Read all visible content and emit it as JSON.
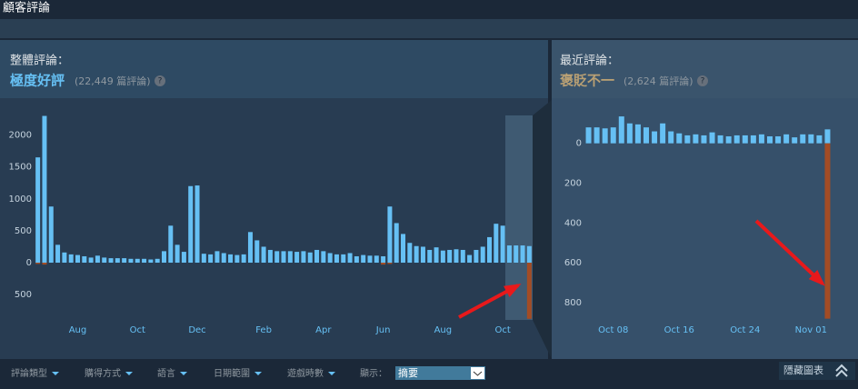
{
  "header": {
    "title": "顧客評論"
  },
  "overall": {
    "label": "整體評論：",
    "rating": "極度好評",
    "count": "(22,449 篇評論)",
    "help": "?"
  },
  "recent": {
    "label": "最近評論：",
    "rating": "褒貶不一",
    "count": "(2,624 篇評論)",
    "help": "?"
  },
  "filters": {
    "items": [
      "評論類型",
      "購得方式",
      "語言",
      "日期範圍",
      "遊戲時數"
    ],
    "display_label": "顯示：",
    "display_value": "摘要",
    "hide": "隱藏圖表"
  },
  "chart_data": [
    {
      "type": "bar",
      "categories": [
        null,
        null,
        null,
        null,
        null,
        null,
        "Aug",
        null,
        null,
        null,
        null,
        null,
        null,
        null,
        null,
        "Oct",
        null,
        null,
        null,
        null,
        null,
        null,
        null,
        null,
        "Dec",
        null,
        null,
        null,
        null,
        null,
        null,
        null,
        null,
        null,
        "Feb",
        null,
        null,
        null,
        null,
        null,
        null,
        null,
        null,
        "Apr",
        null,
        null,
        null,
        null,
        null,
        null,
        null,
        null,
        "Jun",
        null,
        null,
        null,
        null,
        null,
        null,
        null,
        null,
        "Aug",
        null,
        null,
        null,
        null,
        null,
        null,
        null,
        null,
        "Oct",
        null,
        null,
        null,
        null
      ],
      "series": [
        {
          "color": "#66c0f4",
          "values": [
            1650,
            2300,
            880,
            280,
            160,
            130,
            120,
            100,
            80,
            110,
            80,
            70,
            70,
            70,
            60,
            60,
            60,
            50,
            60,
            180,
            580,
            280,
            170,
            1200,
            1210,
            140,
            130,
            180,
            150,
            130,
            120,
            130,
            480,
            350,
            250,
            200,
            180,
            180,
            180,
            170,
            180,
            160,
            200,
            180,
            150,
            130,
            130,
            150,
            100,
            120,
            110,
            110,
            100,
            880,
            620,
            450,
            310,
            260,
            250,
            200,
            240,
            190,
            200,
            210,
            200,
            120,
            200,
            250,
            400,
            610,
            580,
            270,
            270,
            270,
            260
          ]
        },
        {
          "color": "#a34c25",
          "values": [
            -20,
            -30,
            0,
            0,
            0,
            0,
            0,
            0,
            0,
            0,
            0,
            0,
            0,
            0,
            0,
            0,
            0,
            0,
            0,
            0,
            0,
            0,
            0,
            0,
            0,
            0,
            0,
            0,
            0,
            0,
            0,
            0,
            0,
            0,
            0,
            0,
            0,
            0,
            0,
            0,
            0,
            0,
            0,
            0,
            0,
            0,
            0,
            0,
            0,
            0,
            0,
            0,
            -30,
            -20,
            0,
            0,
            0,
            0,
            0,
            0,
            0,
            0,
            0,
            0,
            0,
            0,
            0,
            0,
            0,
            0,
            0,
            0,
            0,
            0,
            -880
          ]
        }
      ],
      "ylim": [
        -940,
        2450
      ],
      "yticks": [
        2000,
        1500,
        1000,
        500,
        0,
        {
          "value": -500,
          "label": "500"
        }
      ]
    },
    {
      "type": "bar",
      "categories": [
        null,
        null,
        null,
        "Oct 08",
        null,
        null,
        null,
        null,
        null,
        null,
        null,
        "Oct 16",
        null,
        null,
        null,
        null,
        null,
        null,
        null,
        "Oct 24",
        null,
        null,
        null,
        null,
        null,
        null,
        null,
        "Nov 01",
        null,
        null
      ],
      "series": [
        {
          "color": "#66c0f4",
          "values": [
            80,
            80,
            75,
            80,
            135,
            100,
            95,
            80,
            60,
            100,
            60,
            50,
            40,
            45,
            40,
            55,
            40,
            35,
            40,
            40,
            40,
            45,
            35,
            35,
            45,
            30,
            45,
            45,
            40,
            70
          ]
        },
        {
          "color": "#a34c25",
          "values": [
            0,
            0,
            0,
            0,
            0,
            0,
            0,
            0,
            0,
            0,
            0,
            0,
            0,
            0,
            0,
            0,
            0,
            0,
            0,
            0,
            0,
            0,
            0,
            0,
            0,
            0,
            0,
            0,
            0,
            -880
          ]
        }
      ],
      "ylim": [
        -900,
        140
      ],
      "yticks": [
        0,
        {
          "value": -200,
          "label": "200"
        },
        {
          "value": -400,
          "label": "400"
        },
        {
          "value": -600,
          "label": "600"
        },
        {
          "value": -800,
          "label": "800"
        }
      ]
    }
  ]
}
